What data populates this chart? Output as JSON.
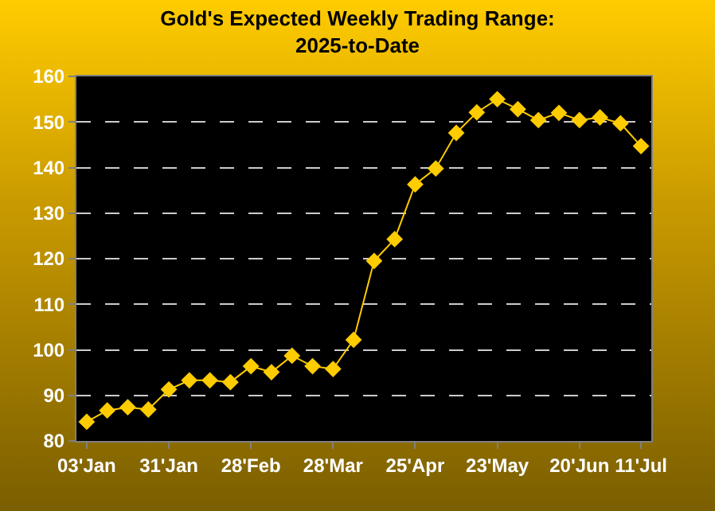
{
  "chart_data": {
    "type": "line",
    "title": "Gold's Expected Weekly Trading Range:\n2025-to-Date",
    "categories": [
      "03'Jan",
      null,
      null,
      null,
      "31'Jan",
      null,
      null,
      null,
      "28'Feb",
      null,
      null,
      null,
      "28'Mar",
      null,
      null,
      null,
      "25'Apr",
      null,
      null,
      null,
      "23'May",
      null,
      null,
      null,
      "20'Jun",
      null,
      null,
      "11'Jul"
    ],
    "series": [
      {
        "color": "#ffcc00",
        "values": [
          84.2,
          86.7,
          87.4,
          86.9,
          91.3,
          93.3,
          93.3,
          92.9,
          96.4,
          95.1,
          98.7,
          96.4,
          95.8,
          102.2,
          119.5,
          124.3,
          136.3,
          139.8,
          147.6,
          152.1,
          155.0,
          152.8,
          150.4,
          152.0,
          150.4,
          151.0,
          149.7,
          144.7
        ]
      }
    ],
    "ylim": [
      80,
      160
    ],
    "yticks": [
      80,
      90,
      100,
      110,
      120,
      130,
      140,
      150,
      160
    ],
    "grid": "y",
    "legend": false,
    "marker": "diamond",
    "line_style": "solid"
  }
}
